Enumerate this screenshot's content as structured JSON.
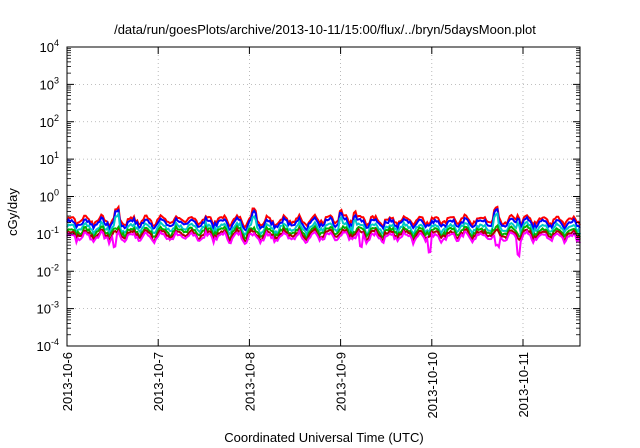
{
  "chart_data": {
    "type": "line",
    "title": "/data/run/goesPlots/archive/2013-10-11/15:00/flux/../bryn/5daysMoon.plot",
    "xlabel": "Coordinated Universal Time (UTC)",
    "ylabel": "cGy/day",
    "x_range": [
      "2013-10-06",
      "2013-10-11 15:00"
    ],
    "x_ticks": [
      "2013-10-6",
      "2013-10-7",
      "2013-10-8",
      "2013-10-9",
      "2013-10-10",
      "2013-10-11"
    ],
    "y_scale": "log",
    "ylim": [
      0.0001,
      10000
    ],
    "y_ticks": [
      {
        "base": "10",
        "exp": "-4"
      },
      {
        "base": "10",
        "exp": "-3"
      },
      {
        "base": "10",
        "exp": "-2"
      },
      {
        "base": "10",
        "exp": "-1"
      },
      {
        "base": "10",
        "exp": "0"
      },
      {
        "base": "10",
        "exp": "1"
      },
      {
        "base": "10",
        "exp": "2"
      },
      {
        "base": "10",
        "exp": "3"
      },
      {
        "base": "10",
        "exp": "4"
      }
    ],
    "grid": true,
    "legend": "none",
    "series": [
      {
        "color": "#ff0000",
        "baseline": 0.24
      },
      {
        "color": "#0000ff",
        "baseline": 0.2
      },
      {
        "color": "#00c8c8",
        "baseline": 0.15
      },
      {
        "color": "#00b000",
        "baseline": 0.12
      },
      {
        "color": "#b00000",
        "baseline": 0.1
      },
      {
        "color": "#ff00ff",
        "baseline": 0.085
      }
    ]
  }
}
